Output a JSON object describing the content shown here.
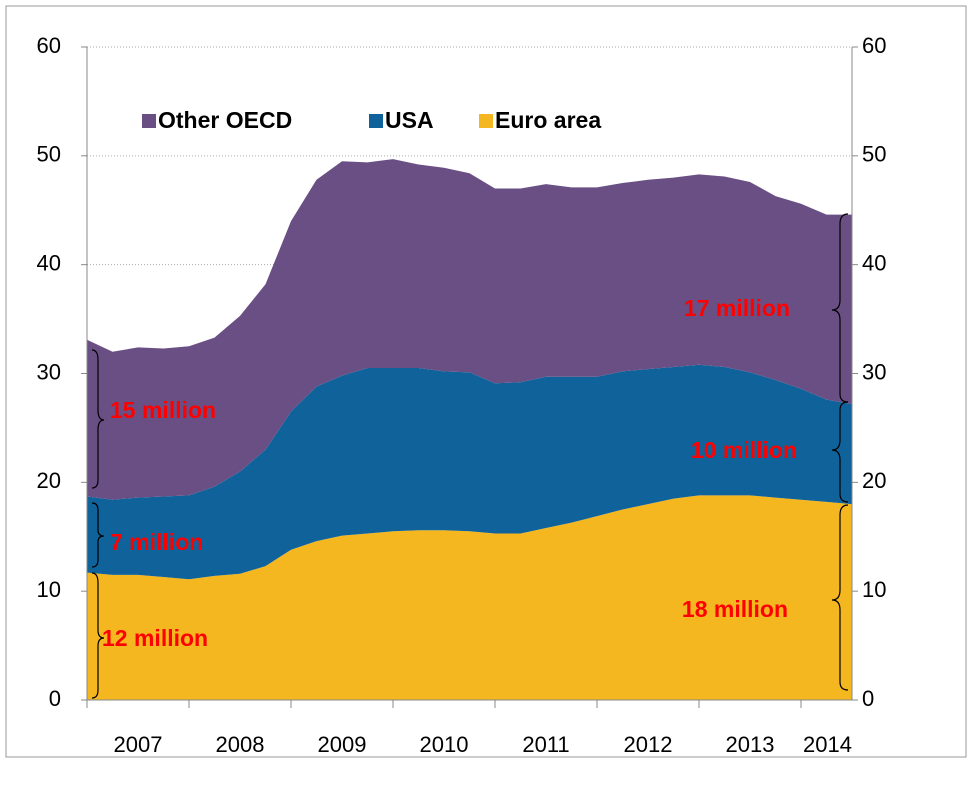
{
  "chart_data": {
    "type": "stacked_area",
    "categories": [
      null,
      null,
      "2007",
      null,
      null,
      null,
      "2008",
      null,
      null,
      null,
      "2009",
      null,
      null,
      null,
      "2010",
      null,
      null,
      null,
      "2011",
      null,
      null,
      null,
      "2012",
      null,
      null,
      null,
      "2013",
      null,
      null,
      null,
      "2014"
    ],
    "series": [
      {
        "name": "Euro area",
        "color": "#f5b71f",
        "values": [
          11.7,
          11.5,
          11.5,
          11.3,
          11.1,
          11.4,
          11.6,
          12.3,
          13.8,
          14.6,
          15.1,
          15.3,
          15.5,
          15.6,
          15.6,
          15.5,
          15.3,
          15.3,
          15.8,
          16.3,
          16.9,
          17.5,
          18.0,
          18.5,
          18.8,
          18.8,
          18.8,
          18.6,
          18.4,
          18.2,
          18.0
        ]
      },
      {
        "name": "USA",
        "color": "#0f629a",
        "values": [
          7.0,
          6.9,
          7.1,
          7.4,
          7.7,
          8.2,
          9.4,
          10.7,
          12.7,
          14.2,
          14.7,
          15.2,
          15.0,
          14.9,
          14.6,
          14.6,
          13.8,
          13.9,
          13.9,
          13.4,
          12.8,
          12.7,
          12.4,
          12.1,
          12.0,
          11.8,
          11.3,
          10.8,
          10.2,
          9.4,
          9.2
        ]
      },
      {
        "name": "Other OECD",
        "color": "#6a4f85",
        "values": [
          14.4,
          13.6,
          13.8,
          13.6,
          13.7,
          13.7,
          14.3,
          15.2,
          17.5,
          19.0,
          19.7,
          18.9,
          19.2,
          18.7,
          18.7,
          18.3,
          17.9,
          17.8,
          17.7,
          17.4,
          17.4,
          17.3,
          17.4,
          17.4,
          17.5,
          17.5,
          17.5,
          16.9,
          17.0,
          17.0,
          17.4
        ]
      }
    ],
    "ylim": [
      0,
      60
    ],
    "yticks": [
      0,
      10,
      20,
      30,
      40,
      50,
      60
    ],
    "y2lim": [
      0,
      60
    ],
    "y2ticks": [
      0,
      10,
      20,
      30,
      40,
      50,
      60
    ],
    "grid": true,
    "legend": "upper left",
    "annotations": [
      "15 million",
      "7 million",
      "12 million",
      "17 million",
      "10 million",
      "18 million"
    ]
  }
}
